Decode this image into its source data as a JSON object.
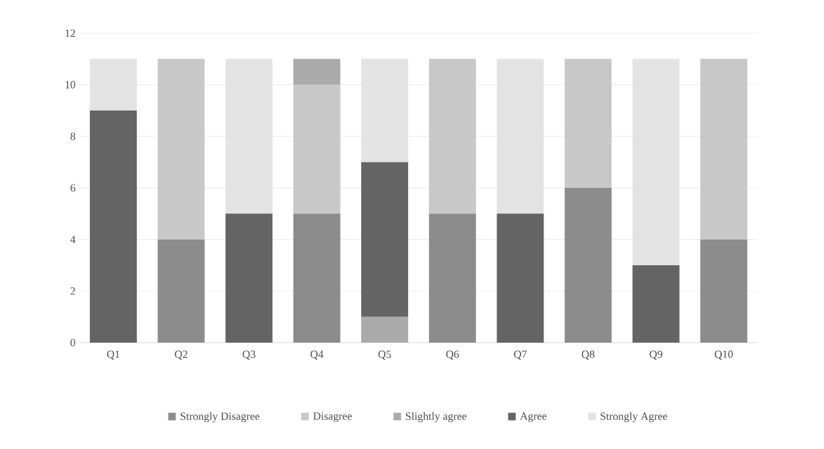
{
  "chart_data": {
    "type": "bar",
    "stacked": true,
    "categories": [
      "Q1",
      "Q2",
      "Q3",
      "Q4",
      "Q5",
      "Q6",
      "Q7",
      "Q8",
      "Q9",
      "Q10"
    ],
    "series": [
      {
        "name": "Strongly Disagree",
        "color": "#8c8c8c",
        "values": [
          0,
          4,
          0,
          5,
          0,
          5,
          0,
          6,
          0,
          4
        ]
      },
      {
        "name": "Disagree",
        "color": "#c8c8c8",
        "values": [
          0,
          7,
          0,
          5,
          0,
          6,
          0,
          5,
          0,
          7
        ]
      },
      {
        "name": "Slightly agree",
        "color": "#aaaaaa",
        "values": [
          0,
          0,
          0,
          1,
          1,
          0,
          0,
          0,
          0,
          0
        ]
      },
      {
        "name": "Agree",
        "color": "#646464",
        "values": [
          9,
          0,
          5,
          0,
          6,
          0,
          5,
          0,
          3,
          0
        ]
      },
      {
        "name": "Strongly Agree",
        "color": "#e3e3e3",
        "values": [
          2,
          0,
          6,
          0,
          4,
          0,
          6,
          0,
          8,
          0
        ]
      }
    ],
    "ylim": [
      0,
      12
    ],
    "yticks": [
      0,
      2,
      4,
      6,
      8,
      10,
      12
    ],
    "grid": "y",
    "legend": "bottom"
  }
}
